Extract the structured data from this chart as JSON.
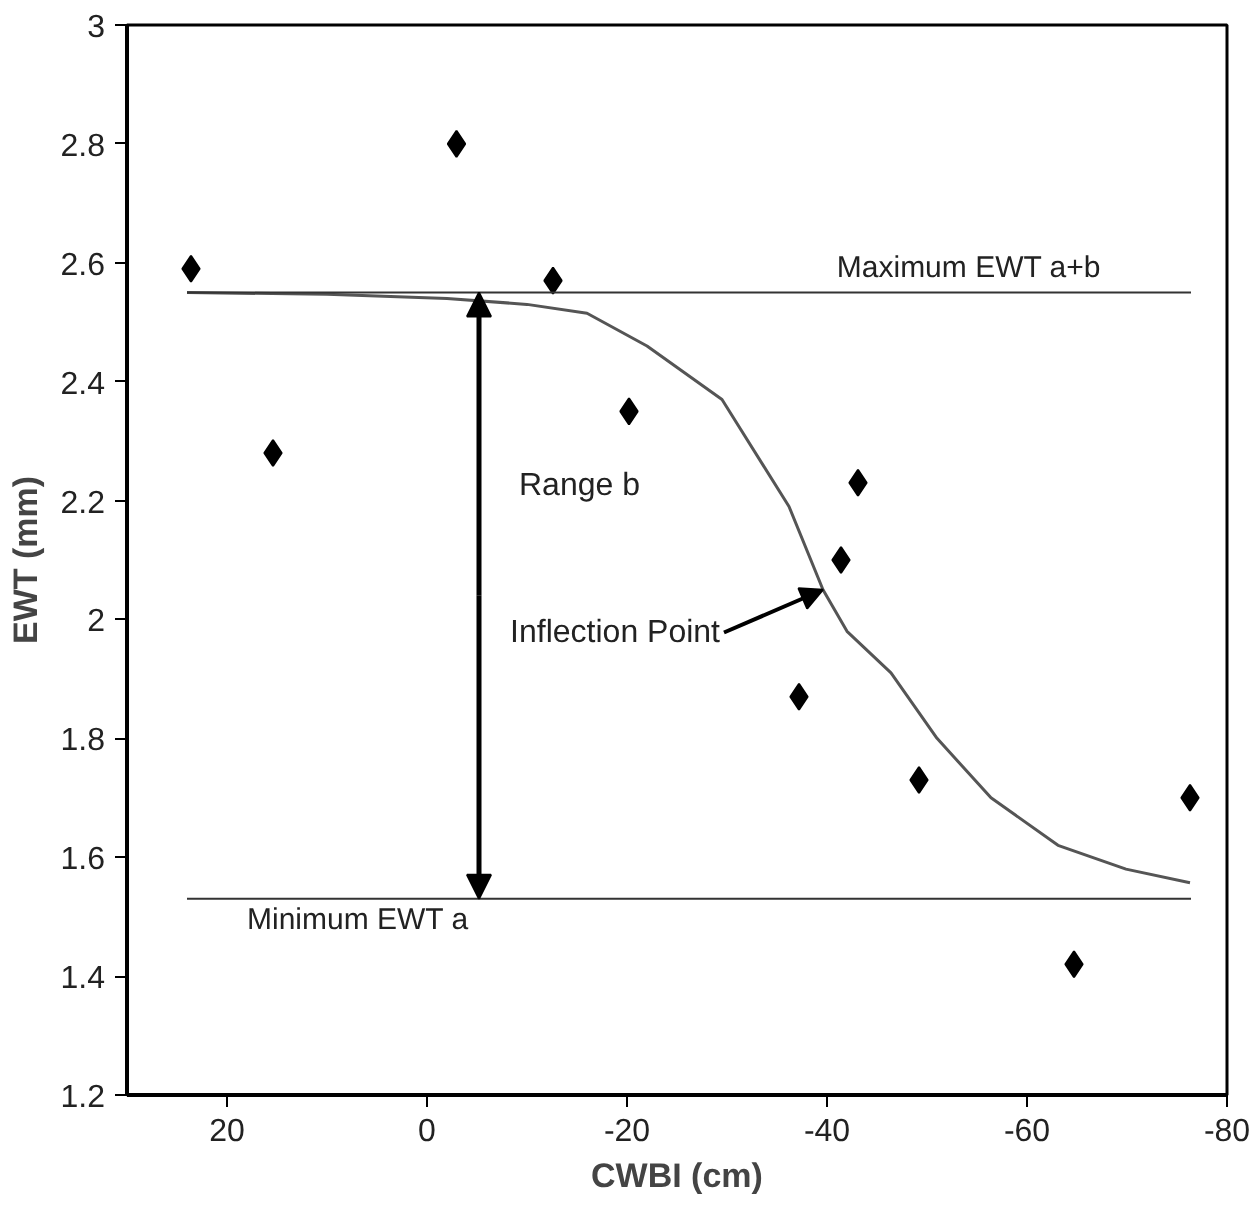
{
  "chart_data": {
    "type": "scatter",
    "xlabel": "CWBI (cm)",
    "ylabel": "EWT (mm)",
    "xlim": [
      30,
      -80
    ],
    "xticks": [
      20,
      0,
      -20,
      -40,
      -60,
      -80
    ],
    "ylim": [
      1.2,
      3
    ],
    "yticks": [
      1.2,
      1.4,
      1.6,
      1.8,
      2,
      2.2,
      2.4,
      2.6,
      2.8,
      3
    ],
    "marker": "diamond",
    "grid": false,
    "series": [
      {
        "color": "#000000",
        "x": [
          23.6,
          15.4,
          -2.95,
          -12.6,
          -20.2,
          -43.1,
          -41.4,
          -37.2,
          -49.2,
          -64.7,
          -76.3
        ],
        "values": [
          2.59,
          2.28,
          2.8,
          2.57,
          2.35,
          2.23,
          2.1,
          1.87,
          1.73,
          1.42,
          1.7
        ]
      },
      {
        "type": "line",
        "marker": "none",
        "color": "#555555",
        "x": [
          24,
          10,
          -2,
          -10,
          -16,
          -22,
          -29.5,
          -36.2,
          -39.6,
          -42,
          -46.4,
          -51,
          -56.4,
          -63.1,
          -69.9,
          -76.3
        ],
        "values": [
          2.55,
          2.547,
          2.54,
          2.53,
          2.515,
          2.46,
          2.37,
          2.19,
          2.05,
          1.98,
          1.91,
          1.8,
          1.7,
          1.62,
          1.58,
          1.557
        ]
      }
    ],
    "ref_lines": [
      {
        "axis": "y",
        "value": 2.55,
        "label": "Maximum EWT a+b",
        "color": "#333333"
      },
      {
        "axis": "y",
        "value": 1.53,
        "label": "Minimum EWT a",
        "color": "#333333"
      }
    ],
    "annotations": [
      "Range b",
      {
        "text": "Inflection Point",
        "x": -39.6,
        "y": 2.05
      }
    ]
  }
}
